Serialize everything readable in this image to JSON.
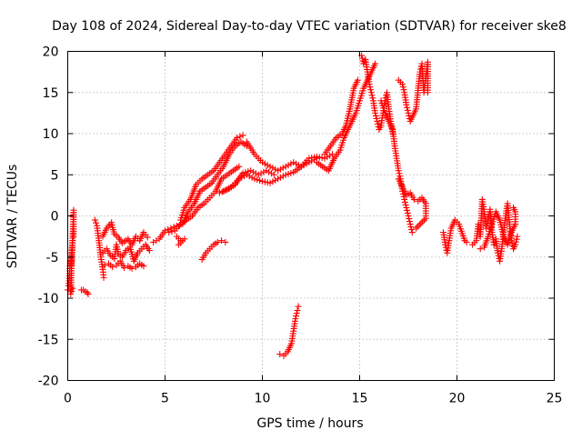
{
  "chart_data": {
    "type": "scatter",
    "title": "Day 108 of 2024, Sidereal Day-to-day VTEC variation (SDTVAR) for receiver ske8",
    "xlabel": "GPS time / hours",
    "ylabel": "SDTVAR / TECUs",
    "xlim": [
      0,
      25
    ],
    "ylim": [
      -20,
      20
    ],
    "x_ticks": [
      "0",
      "5",
      "10",
      "15",
      "20",
      "25"
    ],
    "y_ticks": [
      "20",
      "15",
      "10",
      "5",
      "0",
      "-5",
      "-10",
      "-15",
      "-20"
    ],
    "grid": true,
    "marker": "+",
    "color": "#ff0000",
    "segments": [
      {
        "name": "start",
        "points": [
          [
            0.0,
            -9.0
          ],
          [
            0.05,
            -8.5
          ],
          [
            0.1,
            -7.0
          ],
          [
            0.12,
            -5.5
          ],
          [
            0.18,
            -6.0
          ],
          [
            0.2,
            -4.5
          ],
          [
            0.25,
            -3.0
          ],
          [
            0.3,
            -2.5
          ],
          [
            0.3,
            -1.0
          ],
          [
            0.3,
            0.7
          ],
          [
            0.15,
            -9.5
          ],
          [
            0.25,
            -8.8
          ]
        ]
      },
      {
        "name": "early-low",
        "points": [
          [
            0.7,
            -9.0
          ],
          [
            0.8,
            -9.0
          ],
          [
            0.9,
            -9.2
          ],
          [
            1.0,
            -9.3
          ],
          [
            1.05,
            -9.5
          ]
        ]
      },
      {
        "name": "rise-1",
        "points": [
          [
            1.4,
            -0.5
          ],
          [
            1.5,
            -1.2
          ],
          [
            1.6,
            -3.0
          ],
          [
            1.7,
            -5.0
          ],
          [
            1.8,
            -6.5
          ],
          [
            1.85,
            -7.5
          ]
        ]
      },
      {
        "name": "cluster-a",
        "points": [
          [
            1.8,
            -4.5
          ],
          [
            2.0,
            -4.0
          ],
          [
            2.2,
            -4.8
          ],
          [
            2.4,
            -5.2
          ],
          [
            2.5,
            -3.5
          ],
          [
            2.6,
            -4.6
          ],
          [
            2.8,
            -5.0
          ],
          [
            3.0,
            -4.2
          ],
          [
            3.2,
            -3.8
          ],
          [
            3.4,
            -5.5
          ],
          [
            3.6,
            -4.5
          ],
          [
            3.8,
            -4.0
          ],
          [
            4.0,
            -3.5
          ],
          [
            4.2,
            -4.2
          ]
        ]
      },
      {
        "name": "cluster-b",
        "points": [
          [
            1.9,
            -6.0
          ],
          [
            2.1,
            -5.8
          ],
          [
            2.3,
            -6.2
          ],
          [
            2.5,
            -6.0
          ],
          [
            2.7,
            -5.5
          ],
          [
            2.9,
            -6.3
          ],
          [
            3.1,
            -6.1
          ],
          [
            3.3,
            -6.4
          ],
          [
            3.5,
            -6.2
          ],
          [
            3.7,
            -5.8
          ],
          [
            3.9,
            -6.1
          ]
        ]
      },
      {
        "name": "spikes",
        "points": [
          [
            1.8,
            -2.5
          ],
          [
            2.0,
            -1.5
          ],
          [
            2.25,
            -0.8
          ],
          [
            2.3,
            -1.4
          ],
          [
            2.4,
            -2.2
          ],
          [
            2.6,
            -2.6
          ],
          [
            2.8,
            -3.3
          ],
          [
            3.1,
            -2.8
          ],
          [
            3.3,
            -3.5
          ],
          [
            3.5,
            -2.5
          ],
          [
            3.7,
            -3.0
          ],
          [
            3.9,
            -2.0
          ],
          [
            4.1,
            -2.6
          ]
        ]
      },
      {
        "name": "rise-2",
        "points": [
          [
            4.4,
            -3.2
          ],
          [
            4.7,
            -2.8
          ],
          [
            5.0,
            -1.8
          ],
          [
            5.3,
            -1.5
          ],
          [
            5.6,
            -1.2
          ],
          [
            5.9,
            -1.0
          ],
          [
            6.2,
            0.5
          ],
          [
            6.5,
            1.5
          ],
          [
            6.8,
            3.0
          ],
          [
            7.1,
            3.5
          ],
          [
            7.4,
            4.0
          ],
          [
            7.7,
            5.0
          ],
          [
            8.0,
            6.0
          ],
          [
            8.3,
            7.5
          ],
          [
            8.6,
            8.5
          ],
          [
            8.9,
            9.0
          ],
          [
            9.2,
            8.5
          ]
        ]
      },
      {
        "name": "rise-2-upper",
        "points": [
          [
            5.8,
            -0.5
          ],
          [
            6.0,
            1.0
          ],
          [
            6.3,
            2.0
          ],
          [
            6.6,
            3.8
          ],
          [
            6.9,
            4.5
          ],
          [
            7.2,
            5.0
          ],
          [
            7.5,
            5.5
          ],
          [
            7.8,
            6.5
          ],
          [
            8.1,
            7.5
          ],
          [
            8.4,
            8.5
          ],
          [
            8.7,
            9.5
          ],
          [
            9.0,
            9.8
          ]
        ]
      },
      {
        "name": "rise-2-lower",
        "points": [
          [
            5.2,
            -2.0
          ],
          [
            5.5,
            -1.8
          ],
          [
            5.8,
            -1.0
          ],
          [
            6.1,
            -0.5
          ],
          [
            6.4,
            0.0
          ],
          [
            6.7,
            1.0
          ],
          [
            7.0,
            1.5
          ],
          [
            7.3,
            2.2
          ],
          [
            7.6,
            3.0
          ],
          [
            7.9,
            4.5
          ],
          [
            8.2,
            5.0
          ],
          [
            8.5,
            5.5
          ],
          [
            8.8,
            6.0
          ]
        ]
      },
      {
        "name": "dip-segment",
        "points": [
          [
            5.6,
            -2.5
          ],
          [
            5.8,
            -3.0
          ],
          [
            6.0,
            -2.8
          ],
          [
            5.7,
            -3.5
          ]
        ]
      },
      {
        "name": "small-low",
        "points": [
          [
            6.9,
            -5.3
          ],
          [
            7.1,
            -4.5
          ],
          [
            7.3,
            -4.0
          ],
          [
            7.5,
            -3.5
          ],
          [
            7.7,
            -3.2
          ],
          [
            7.9,
            -3.0
          ],
          [
            8.1,
            -3.2
          ]
        ]
      },
      {
        "name": "plateau-a",
        "points": [
          [
            9.2,
            9.0
          ],
          [
            9.6,
            7.5
          ],
          [
            10.0,
            6.5
          ],
          [
            10.4,
            6.0
          ],
          [
            10.8,
            5.5
          ],
          [
            11.2,
            6.0
          ],
          [
            11.6,
            6.5
          ],
          [
            12.0,
            6.0
          ],
          [
            12.4,
            6.5
          ],
          [
            12.8,
            7.0
          ]
        ]
      },
      {
        "name": "plateau-b",
        "points": [
          [
            8.0,
            3.0
          ],
          [
            8.4,
            3.5
          ],
          [
            8.8,
            4.5
          ],
          [
            9.2,
            5.0
          ],
          [
            9.6,
            4.5
          ],
          [
            10.0,
            4.2
          ],
          [
            10.4,
            4.0
          ],
          [
            10.8,
            4.5
          ],
          [
            11.2,
            5.0
          ],
          [
            11.6,
            5.3
          ],
          [
            12.0,
            6.0
          ],
          [
            12.4,
            7.0
          ],
          [
            12.8,
            7.2
          ],
          [
            13.2,
            7.0
          ],
          [
            13.6,
            7.5
          ]
        ]
      },
      {
        "name": "plateau-c",
        "points": [
          [
            7.8,
            2.8
          ],
          [
            8.2,
            3.2
          ],
          [
            8.6,
            3.8
          ],
          [
            9.0,
            5.2
          ],
          [
            9.4,
            5.5
          ],
          [
            9.8,
            5.0
          ],
          [
            10.2,
            5.5
          ],
          [
            10.6,
            5.0
          ]
        ]
      },
      {
        "name": "low-arc",
        "points": [
          [
            10.9,
            -16.8
          ],
          [
            11.1,
            -17.0
          ],
          [
            11.3,
            -16.5
          ],
          [
            11.5,
            -15.5
          ],
          [
            11.6,
            -14.0
          ],
          [
            11.7,
            -12.5
          ],
          [
            11.8,
            -11.5
          ],
          [
            11.85,
            -11.0
          ]
        ]
      },
      {
        "name": "rise-3",
        "points": [
          [
            12.8,
            6.5
          ],
          [
            13.1,
            6.0
          ],
          [
            13.4,
            5.5
          ],
          [
            13.7,
            7.0
          ],
          [
            14.0,
            8.0
          ],
          [
            14.2,
            9.5
          ],
          [
            14.4,
            10.5
          ],
          [
            14.6,
            11.5
          ],
          [
            14.8,
            12.5
          ],
          [
            15.0,
            14.0
          ],
          [
            15.2,
            15.5
          ],
          [
            15.4,
            16.5
          ],
          [
            15.6,
            17.5
          ],
          [
            15.8,
            18.5
          ]
        ]
      },
      {
        "name": "rise-3-b",
        "points": [
          [
            13.2,
            7.5
          ],
          [
            13.5,
            8.5
          ],
          [
            13.8,
            9.5
          ],
          [
            14.1,
            10.0
          ],
          [
            14.3,
            11.0
          ],
          [
            14.5,
            13.0
          ],
          [
            14.7,
            15.5
          ],
          [
            14.9,
            16.5
          ]
        ]
      },
      {
        "name": "peak",
        "points": [
          [
            15.1,
            19.5
          ],
          [
            15.2,
            18.5
          ],
          [
            15.3,
            19.0
          ],
          [
            15.4,
            17.5
          ],
          [
            15.5,
            16.0
          ],
          [
            15.6,
            15.0
          ],
          [
            15.7,
            14.0
          ],
          [
            15.8,
            12.5
          ],
          [
            15.9,
            11.5
          ],
          [
            16.0,
            10.5
          ],
          [
            16.1,
            11.0
          ],
          [
            16.2,
            12.5
          ],
          [
            16.3,
            14.0
          ],
          [
            16.4,
            15.0
          ],
          [
            16.5,
            13.0
          ],
          [
            16.6,
            11.5
          ],
          [
            16.7,
            10.0
          ]
        ]
      },
      {
        "name": "descent",
        "points": [
          [
            16.1,
            14.0
          ],
          [
            16.3,
            12.5
          ],
          [
            16.5,
            11.5
          ],
          [
            16.7,
            10.5
          ],
          [
            16.8,
            8.5
          ],
          [
            16.9,
            7.0
          ],
          [
            17.0,
            5.5
          ],
          [
            17.1,
            4.5
          ],
          [
            17.2,
            3.0
          ],
          [
            17.3,
            2.0
          ],
          [
            17.4,
            1.0
          ],
          [
            17.5,
            0.0
          ],
          [
            17.6,
            -1.0
          ],
          [
            17.7,
            -2.0
          ]
        ]
      },
      {
        "name": "right-upper",
        "points": [
          [
            17.0,
            16.5
          ],
          [
            17.2,
            16.0
          ],
          [
            17.3,
            15.0
          ],
          [
            17.4,
            13.5
          ],
          [
            17.5,
            12.5
          ],
          [
            17.6,
            11.5
          ],
          [
            17.7,
            12.0
          ],
          [
            17.9,
            13.0
          ],
          [
            18.1,
            17.5
          ],
          [
            18.2,
            18.5
          ],
          [
            18.3,
            15.0
          ],
          [
            18.5,
            18.7
          ],
          [
            18.5,
            15.0
          ]
        ]
      },
      {
        "name": "right-mid",
        "points": [
          [
            17.0,
            4.5
          ],
          [
            17.2,
            3.5
          ],
          [
            17.4,
            2.5
          ],
          [
            17.6,
            2.8
          ],
          [
            17.8,
            2.0
          ],
          [
            18.0,
            1.8
          ],
          [
            18.2,
            2.2
          ],
          [
            18.4,
            1.5
          ],
          [
            18.4,
            -0.3
          ],
          [
            17.9,
            -1.5
          ]
        ]
      },
      {
        "name": "isolated",
        "points": [
          [
            19.3,
            -2.0
          ],
          [
            19.4,
            -3.5
          ],
          [
            19.5,
            -4.5
          ],
          [
            19.7,
            -1.5
          ],
          [
            19.9,
            -0.5
          ],
          [
            20.1,
            -1.0
          ],
          [
            20.4,
            -3.0
          ],
          [
            20.5,
            -3.2
          ]
        ]
      },
      {
        "name": "late-cluster",
        "points": [
          [
            20.8,
            -3.5
          ],
          [
            21.0,
            -3.0
          ],
          [
            21.1,
            -1.0
          ],
          [
            21.2,
            -2.5
          ],
          [
            21.3,
            2.0
          ],
          [
            21.4,
            0.5
          ],
          [
            21.5,
            -1.5
          ],
          [
            21.6,
            -0.5
          ],
          [
            21.7,
            0.8
          ],
          [
            21.8,
            -2.0
          ],
          [
            21.9,
            -3.5
          ],
          [
            22.0,
            -2.8
          ],
          [
            22.1,
            -4.5
          ],
          [
            22.2,
            -5.5
          ],
          [
            22.3,
            -4.0
          ],
          [
            22.4,
            -2.0
          ],
          [
            22.5,
            0.0
          ],
          [
            22.6,
            1.5
          ],
          [
            22.7,
            -1.0
          ],
          [
            22.8,
            -3.0
          ],
          [
            22.9,
            -4.0
          ],
          [
            23.0,
            -3.5
          ],
          [
            23.1,
            -2.5
          ]
        ]
      },
      {
        "name": "late-cluster-b",
        "points": [
          [
            21.2,
            -4.0
          ],
          [
            21.4,
            -3.8
          ],
          [
            21.6,
            -2.5
          ],
          [
            21.8,
            -1.0
          ],
          [
            22.0,
            0.5
          ],
          [
            22.2,
            -0.5
          ],
          [
            22.4,
            -2.5
          ],
          [
            22.6,
            -3.5
          ],
          [
            22.8,
            -2.0
          ],
          [
            23.0,
            -1.0
          ],
          [
            23.0,
            0.5
          ],
          [
            22.9,
            1.0
          ]
        ]
      }
    ]
  }
}
